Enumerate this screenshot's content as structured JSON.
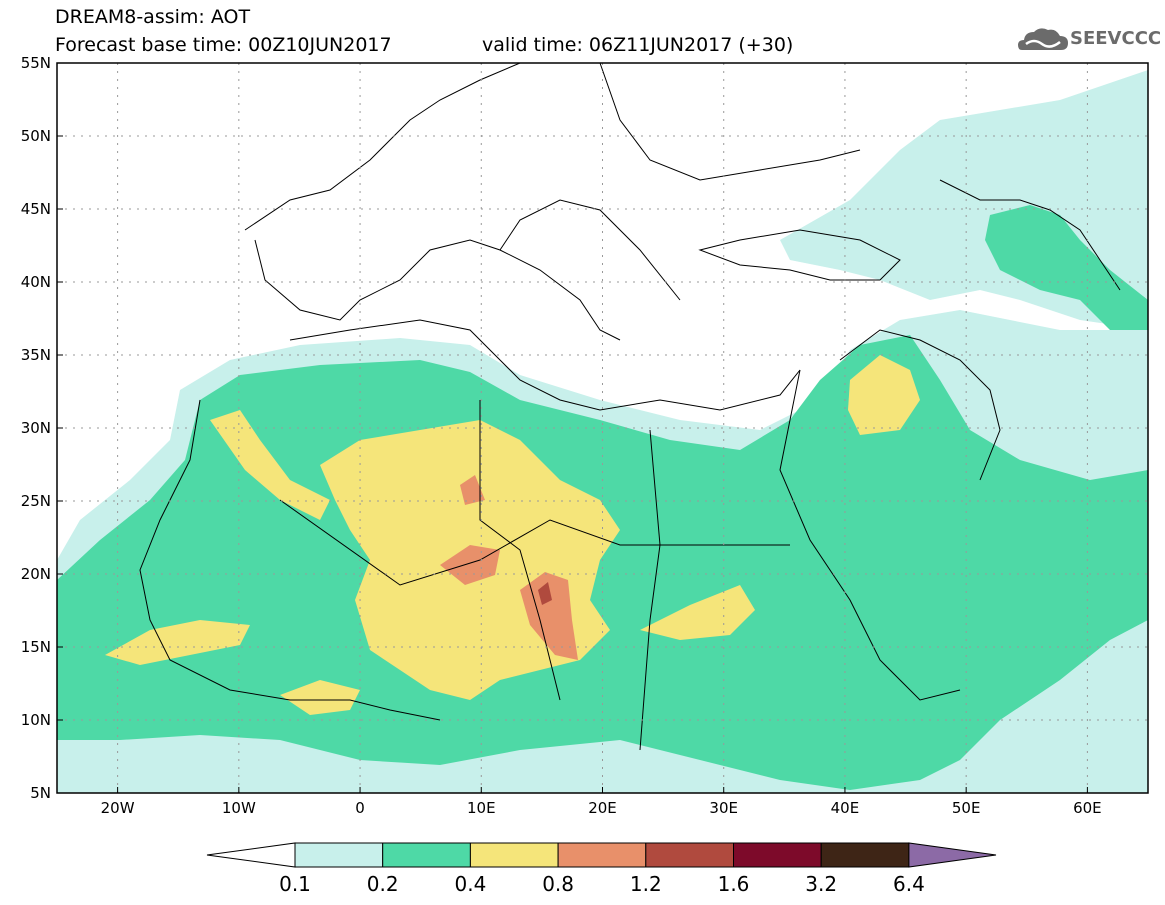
{
  "title": {
    "line1": "DREAM8-assim: AOT",
    "line2": "Forecast base time: 00Z10JUN2017",
    "valid": "valid time: 06Z11JUN2017 (+30)"
  },
  "logo": {
    "text": "SEEVCCC",
    "icon": "cloud-icon"
  },
  "map": {
    "lon_range": [
      -25,
      65
    ],
    "lat_range": [
      5,
      55
    ],
    "lat_ticks": [
      {
        "value": 55,
        "label": "55N"
      },
      {
        "value": 50,
        "label": "50N"
      },
      {
        "value": 45,
        "label": "45N"
      },
      {
        "value": 40,
        "label": "40N"
      },
      {
        "value": 35,
        "label": "35N"
      },
      {
        "value": 30,
        "label": "30N"
      },
      {
        "value": 25,
        "label": "25N"
      },
      {
        "value": 20,
        "label": "20N"
      },
      {
        "value": 15,
        "label": "15N"
      },
      {
        "value": 10,
        "label": "10N"
      },
      {
        "value": 5,
        "label": "5N"
      }
    ],
    "lon_ticks": [
      {
        "value": -20,
        "label": "20W"
      },
      {
        "value": -10,
        "label": "10W"
      },
      {
        "value": 0,
        "label": "0"
      },
      {
        "value": 10,
        "label": "10E"
      },
      {
        "value": 20,
        "label": "20E"
      },
      {
        "value": 30,
        "label": "30E"
      },
      {
        "value": 40,
        "label": "40E"
      },
      {
        "value": 50,
        "label": "50E"
      },
      {
        "value": 60,
        "label": "60E"
      }
    ],
    "grid": "dotted"
  },
  "colorbar": {
    "labels": [
      "0.1",
      "0.2",
      "0.4",
      "0.8",
      "1.2",
      "1.6",
      "3.2",
      "6.4"
    ],
    "colors": [
      "#ffffff",
      "#c8f0eb",
      "#4ed9a6",
      "#f5e57a",
      "#e8906a",
      "#b04a3e",
      "#7d0a2a",
      "#3e2516",
      "#8c6aa6"
    ]
  }
}
